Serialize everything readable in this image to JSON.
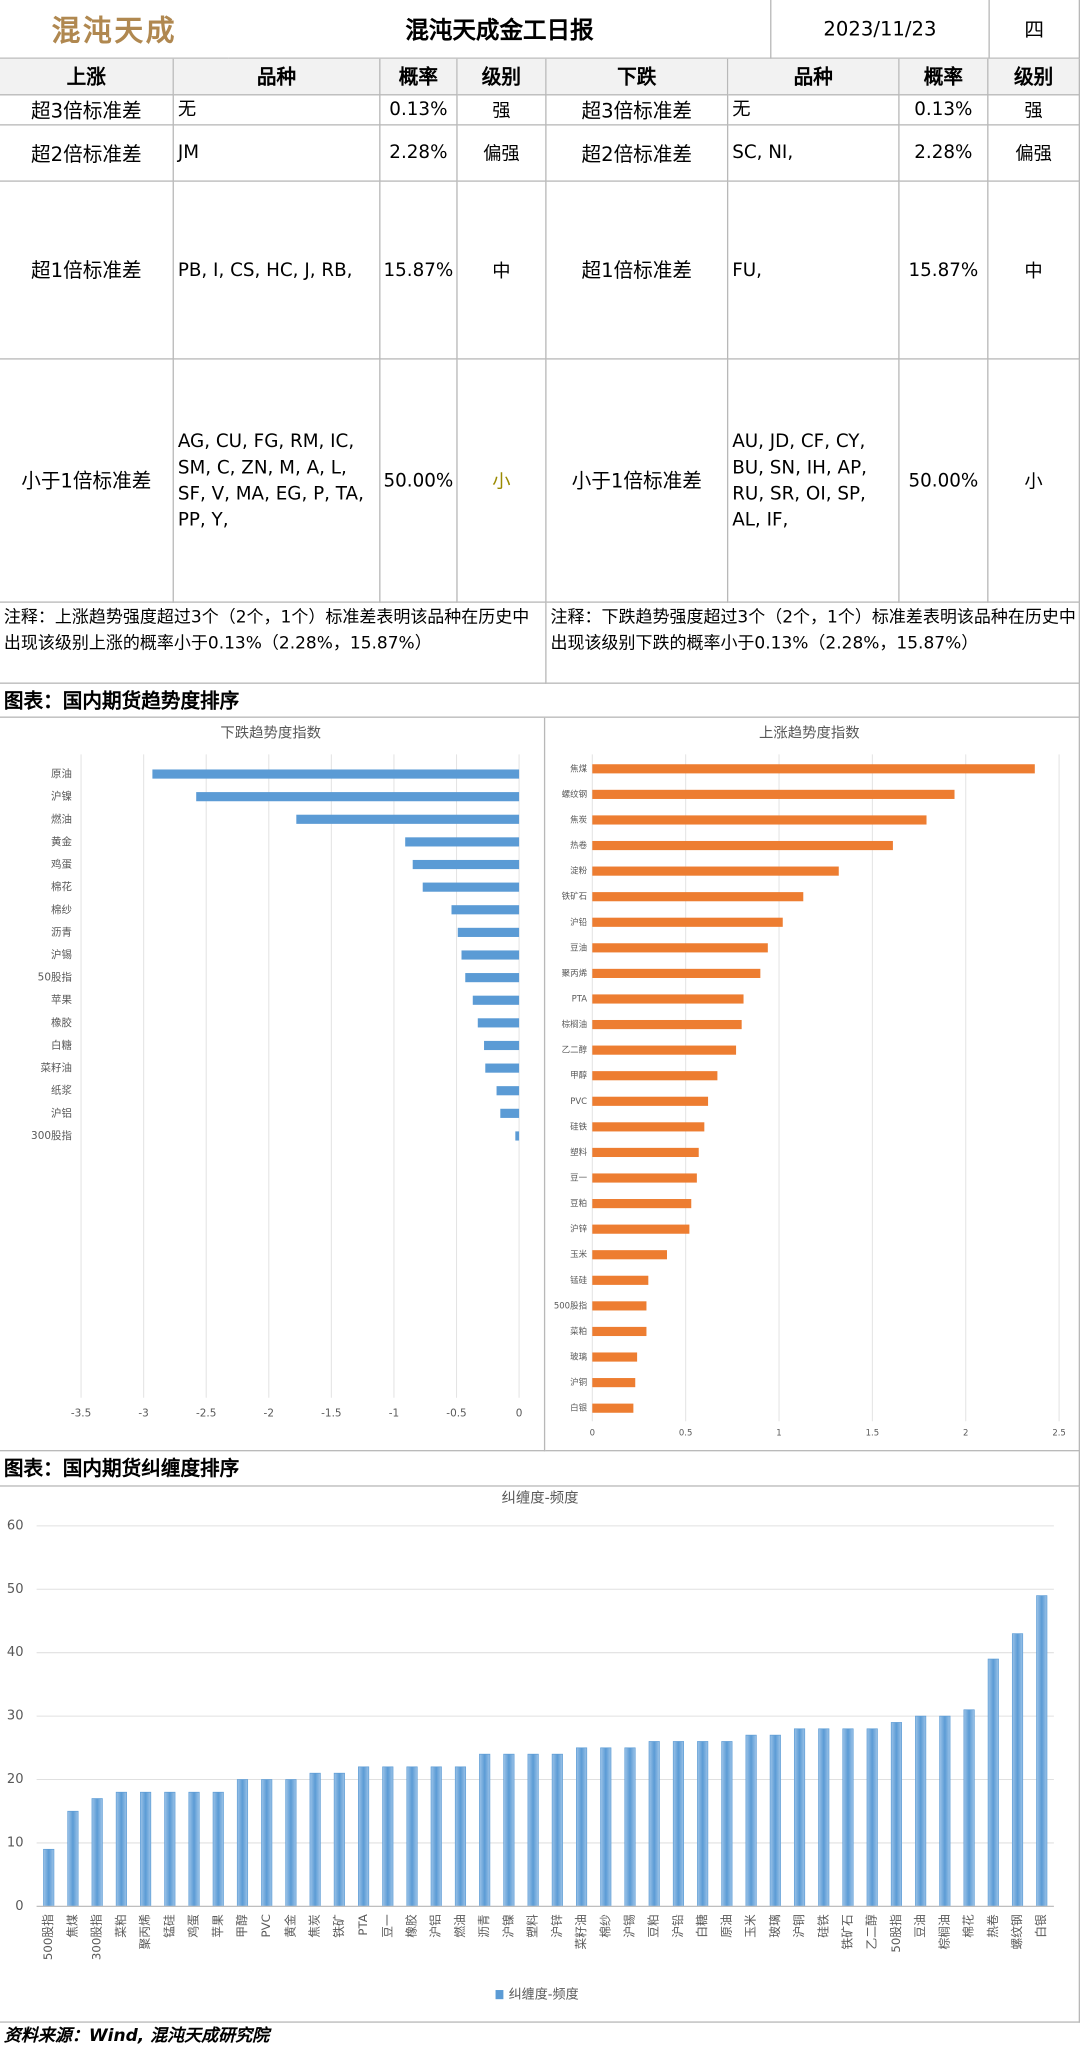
{
  "header": {
    "logo": "混沌天成",
    "title": "混沌天成金工日报",
    "date": "2023/11/23",
    "weekday": "四"
  },
  "table": {
    "columns": [
      "上涨",
      "品种",
      "概率",
      "级别",
      "下跌",
      "品种",
      "概率",
      "级别"
    ],
    "rows": [
      [
        "超3倍标准差",
        "无",
        "0.13%",
        "强",
        "超3倍标准差",
        "无",
        "0.13%",
        "强"
      ],
      [
        "超2倍标准差",
        "JM",
        "2.28%",
        "偏强",
        "超2倍标准差",
        "SC, NI,",
        "2.28%",
        "偏强"
      ],
      [
        "超1倍标准差",
        "PB, I, CS, HC, J, RB,",
        "15.87%",
        "中",
        "超1倍标准差",
        "FU,",
        "15.87%",
        "中"
      ],
      [
        "小于1倍标准差",
        "AG, CU, FG, RM, IC, SM, C, ZN, M, A, L, SF, V, MA, EG, P, TA, PP, Y,",
        "50.00%",
        "小",
        "小于1倍标准差",
        "AU, JD, CF, CY, BU, SN, IH, AP, RU, SR, OI, SP, AL, IF,",
        "50.00%",
        "小"
      ]
    ],
    "notes": [
      "注释：上涨趋势强度超过3个（2个，1个）标准差表明该品种在历史中出现该级别上涨的概率小于0.13%（2.28%，15.87%）",
      "注释：下跌趋势强度超过3个（2个，1个）标准差表明该品种在历史中出现该级别下跌的概率小于0.13%（2.28%，15.87%）"
    ]
  },
  "sections": [
    "图表：国内期货趋势度排序",
    "图表：国内期货纠缠度排序"
  ],
  "chart_data": [
    {
      "type": "bar",
      "orientation": "horizontal",
      "title": "下跌趋势度指数",
      "color": "#5b9bd5",
      "categories": [
        "原油",
        "沪镍",
        "燃油",
        "黄金",
        "鸡蛋",
        "棉花",
        "棉纱",
        "沥青",
        "沪锡",
        "50股指",
        "苹果",
        "橡胶",
        "白糖",
        "菜籽油",
        "纸浆",
        "沪铝",
        "300股指"
      ],
      "values": [
        -2.93,
        -2.58,
        -1.78,
        -0.91,
        -0.85,
        -0.77,
        -0.54,
        -0.49,
        -0.46,
        -0.43,
        -0.37,
        -0.33,
        -0.28,
        -0.27,
        -0.18,
        -0.15,
        -0.03
      ],
      "xlim": [
        -3.5,
        0
      ],
      "xticks": [
        -3.5,
        -3,
        -2.5,
        -2,
        -1.5,
        -1,
        -0.5,
        0
      ],
      "grid": true
    },
    {
      "type": "bar",
      "orientation": "horizontal",
      "title": "上涨趋势度指数",
      "color": "#ed7d31",
      "categories": [
        "焦煤",
        "螺纹钢",
        "焦炭",
        "热卷",
        "淀粉",
        "铁矿石",
        "沪铅",
        "豆油",
        "聚丙烯",
        "PTA",
        "棕榈油",
        "乙二醇",
        "甲醇",
        "PVC",
        "硅铁",
        "塑料",
        "豆一",
        "豆粕",
        "沪锌",
        "玉米",
        "锰硅",
        "500股指",
        "菜粕",
        "玻璃",
        "沪铜",
        "白银"
      ],
      "values": [
        2.37,
        1.94,
        1.79,
        1.61,
        1.32,
        1.13,
        1.02,
        0.94,
        0.9,
        0.81,
        0.8,
        0.77,
        0.67,
        0.62,
        0.6,
        0.57,
        0.56,
        0.53,
        0.52,
        0.4,
        0.3,
        0.29,
        0.29,
        0.24,
        0.23,
        0.22
      ],
      "xlim": [
        0,
        2.5
      ],
      "xticks": [
        0,
        0.5,
        1,
        1.5,
        2,
        2.5
      ],
      "grid": true
    },
    {
      "type": "bar",
      "orientation": "vertical",
      "title": "纠缠度-频度",
      "categories": [
        "500股指",
        "焦煤",
        "300股指",
        "菜粕",
        "聚丙烯",
        "锰硅",
        "鸡蛋",
        "苹果",
        "甲醇",
        "PVC",
        "黄金",
        "焦炭",
        "铁矿",
        "PTA",
        "豆一",
        "橡胶",
        "沪铝",
        "燃油",
        "沥青",
        "沪镍",
        "塑料",
        "沪锌",
        "菜籽油",
        "棉纱",
        "沪锡",
        "豆粕",
        "沪铅",
        "白糖",
        "原油",
        "玉米",
        "玻璃",
        "沪铜",
        "硅铁",
        "铁矿石",
        "乙二醇",
        "50股指",
        "豆油",
        "棕榈油",
        "棉花",
        "热卷",
        "螺纹钢",
        "白银"
      ],
      "series": [
        {
          "name": "纠缠度-频度",
          "color": "#5b9bd5",
          "values": [
            9,
            15,
            17,
            18,
            18,
            18,
            18,
            18,
            20,
            20,
            20,
            21,
            21,
            22,
            22,
            22,
            22,
            22,
            24,
            24,
            24,
            24,
            25,
            25,
            25,
            26,
            26,
            26,
            26,
            27,
            27,
            28,
            28,
            28,
            28,
            29,
            30,
            30,
            31,
            39,
            43,
            49
          ]
        }
      ],
      "ylim": [
        0,
        60
      ],
      "yticks": [
        0,
        10,
        20,
        30,
        40,
        50,
        60
      ],
      "grid": true,
      "legend": "bottom"
    }
  ],
  "footer": "资料来源：Wind, 混沌天成研究院"
}
